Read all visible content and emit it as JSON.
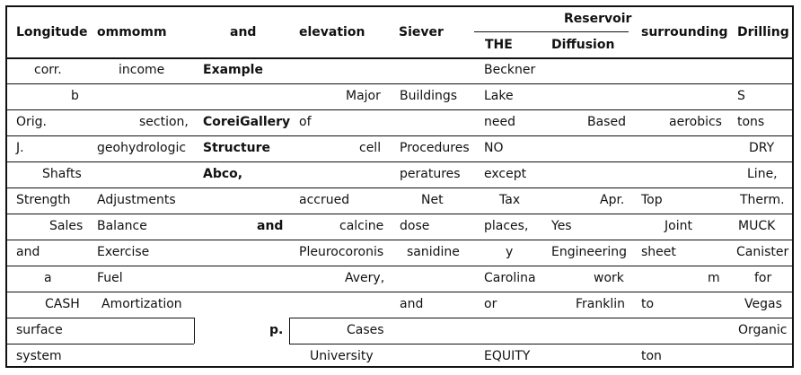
{
  "header": {
    "col1": "Longitude",
    "col2": "ommomm",
    "col3": "and",
    "col4": "elevation",
    "col5": "Siever",
    "group": "Reservoir",
    "sub1": "THE",
    "sub2": "Diffusion",
    "col8": "surrounding",
    "col9": "Drilling"
  },
  "rows": [
    [
      "corr.",
      "income",
      "Example",
      "",
      "",
      "Beckner",
      "",
      "",
      ""
    ],
    [
      "b",
      "",
      "",
      "Major",
      "Buildings",
      "Lake",
      "",
      "",
      "S"
    ],
    [
      "Orig.",
      "section,",
      "CoreiGallery",
      "of",
      "",
      "need",
      "Based",
      "aerobics",
      "tons"
    ],
    [
      "J.",
      "geohydrologic",
      "Structure",
      "cell",
      "Procedures",
      "NO",
      "",
      "",
      "DRY"
    ],
    [
      "Shafts",
      "",
      "Abco,",
      "",
      "peratures",
      "except",
      "",
      "",
      "Line,"
    ],
    [
      "Strength",
      "Adjustments",
      "",
      "accrued",
      "Net",
      "Tax",
      "Apr.",
      "Top",
      "Therm."
    ],
    [
      "Sales",
      "Balance",
      "and",
      "calcine",
      "dose",
      "places,",
      "Yes",
      "Joint",
      "MUCK"
    ],
    [
      "and",
      "Exercise",
      "",
      "Pleurocoronis",
      "sanidine",
      "y",
      "Engineering",
      "sheet",
      "Canister"
    ],
    [
      "a",
      "Fuel",
      "",
      "Avery,",
      "",
      "Carolina",
      "work",
      "m",
      "for"
    ],
    [
      "CASH",
      "Amortization",
      "",
      "",
      "and",
      "or",
      "Franklin",
      "to",
      "Vegas"
    ],
    [
      "surface",
      "",
      "p.",
      "Cases",
      "",
      "",
      "",
      "",
      "Organic"
    ],
    [
      "system",
      "",
      "",
      "University",
      "",
      "EQUITY",
      "",
      "ton",
      ""
    ]
  ]
}
